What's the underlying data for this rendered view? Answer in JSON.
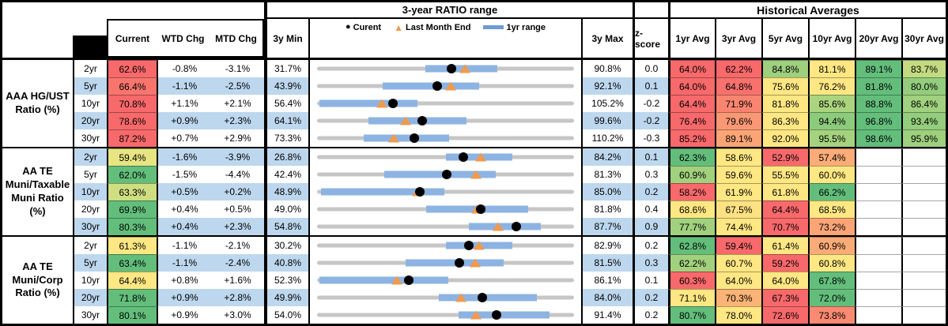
{
  "header": {
    "range_title": "3-year RATIO range",
    "hist_title": "Historical Averages",
    "col_current": "Current",
    "col_wtd": "WTD Chg",
    "col_mtd": "MTD Chg",
    "col_min": "3y Min",
    "col_max": "3y Max",
    "col_z": "z-score",
    "avg_cols": [
      "1yr Avg",
      "3yr Avg",
      "5yr Avg",
      "10yr Avg",
      "20yr Avg",
      "30yr Avg"
    ],
    "legend": {
      "current": "Curent",
      "last_month": "Last Month End",
      "range": "1yr range"
    }
  },
  "colors": {
    "stripe_blue": "#bdd7ee",
    "range_bar_blue": "#8db3e2",
    "track_gray": "#c6c6c6",
    "triangle_orange": "#f09a4d",
    "dot_black": "#000000",
    "heat_red": "#f8696b",
    "heat_yellow": "#ffe783",
    "heat_green": "#63be7b"
  },
  "chart_data": {
    "type": "table",
    "note": "Each row has a 3y Min..3y Max range chart: gray track = 3y range, blue bar = 1yr range (pct of track), black dot = Current, orange triangle = Last Month End",
    "groups": [
      {
        "label": "AAA HG/UST Ratio (%)",
        "rows": [
          {
            "tenor": "2yr",
            "striped": false,
            "current": "62.6%",
            "current_color": "#f8696b",
            "wtd": "-0.8%",
            "mtd": "-3.1%",
            "min": "31.7%",
            "max": "90.8%",
            "z": "0.0",
            "bar": [
              42,
              70
            ],
            "dot": 52.3,
            "tri": 57.5,
            "avgs": [
              {
                "v": "64.0%",
                "c": "#f8696b"
              },
              {
                "v": "62.2%",
                "c": "#f8696b"
              },
              {
                "v": "84.8%",
                "c": "#9ed07e"
              },
              {
                "v": "81.1%",
                "c": "#ffe783"
              },
              {
                "v": "89.1%",
                "c": "#63be7b"
              },
              {
                "v": "83.7%",
                "c": "#c3da80"
              }
            ]
          },
          {
            "tenor": "5yr",
            "striped": true,
            "current": "66.4%",
            "current_color": "#f8756e",
            "wtd": "-1.1%",
            "mtd": "-2.5%",
            "min": "43.9%",
            "max": "92.1%",
            "z": "0.1",
            "bar": [
              25.5,
              63
            ],
            "dot": 46.7,
            "tri": 51.9,
            "avgs": [
              {
                "v": "64.0%",
                "c": "#f8696b"
              },
              {
                "v": "64.8%",
                "c": "#f8716d"
              },
              {
                "v": "75.6%",
                "c": "#ffe783"
              },
              {
                "v": "76.2%",
                "c": "#ffe783"
              },
              {
                "v": "81.8%",
                "c": "#63be7b"
              },
              {
                "v": "80.0%",
                "c": "#93cd7d"
              }
            ]
          },
          {
            "tenor": "10yr",
            "striped": false,
            "current": "70.8%",
            "current_color": "#f8696b",
            "wtd": "+1.1%",
            "mtd": "+2.1%",
            "min": "56.4%",
            "max": "105.2%",
            "z": "-0.2",
            "bar": [
              1,
              39
            ],
            "dot": 29.5,
            "tri": 25.2,
            "avgs": [
              {
                "v": "64.4%",
                "c": "#f8696b"
              },
              {
                "v": "71.9%",
                "c": "#f98570"
              },
              {
                "v": "81.8%",
                "c": "#ffe783"
              },
              {
                "v": "85.6%",
                "c": "#abd47f"
              },
              {
                "v": "88.8%",
                "c": "#63be7b"
              },
              {
                "v": "86.4%",
                "c": "#a0d17e"
              }
            ]
          },
          {
            "tenor": "20yr",
            "striped": true,
            "current": "78.6%",
            "current_color": "#f8696b",
            "wtd": "+0.9%",
            "mtd": "+2.3%",
            "min": "64.1%",
            "max": "99.6%",
            "z": "-0.2",
            "bar": [
              20,
              58
            ],
            "dot": 40.8,
            "tri": 34.4,
            "avgs": [
              {
                "v": "76.4%",
                "c": "#f8696b"
              },
              {
                "v": "79.6%",
                "c": "#fa9875"
              },
              {
                "v": "86.3%",
                "c": "#ffe783"
              },
              {
                "v": "94.4%",
                "c": "#8ccb7c"
              },
              {
                "v": "96.8%",
                "c": "#63be7b"
              },
              {
                "v": "93.4%",
                "c": "#94cd7d"
              }
            ]
          },
          {
            "tenor": "30yr",
            "striped": false,
            "current": "87.2%",
            "current_color": "#f8696b",
            "wtd": "+0.7%",
            "mtd": "+2.9%",
            "min": "73.3%",
            "max": "110.2%",
            "z": "-0.3",
            "bar": [
              18,
              51.5
            ],
            "dot": 37.7,
            "tri": 29.8,
            "avgs": [
              {
                "v": "85.2%",
                "c": "#f8696b"
              },
              {
                "v": "89.1%",
                "c": "#fba577"
              },
              {
                "v": "92.0%",
                "c": "#ffe783"
              },
              {
                "v": "95.5%",
                "c": "#a5d27e"
              },
              {
                "v": "98.6%",
                "c": "#63be7b"
              },
              {
                "v": "95.9%",
                "c": "#9ed07e"
              }
            ]
          }
        ]
      },
      {
        "label": "AA TE Muni/Taxable Muni Ratio (%)",
        "rows": [
          {
            "tenor": "2yr",
            "striped": true,
            "current": "59.4%",
            "current_color": "#e7e482",
            "wtd": "-1.6%",
            "mtd": "-3.9%",
            "min": "26.8%",
            "max": "84.2%",
            "z": "0.1",
            "bar": [
              50,
              76
            ],
            "dot": 56.8,
            "tri": 63.6,
            "avgs": [
              {
                "v": "62.3%",
                "c": "#63be7b"
              },
              {
                "v": "58.6%",
                "c": "#ffe783"
              },
              {
                "v": "52.9%",
                "c": "#f8696b"
              },
              {
                "v": "57.4%",
                "c": "#fbac77"
              },
              null,
              null
            ]
          },
          {
            "tenor": "5yr",
            "striped": false,
            "current": "62.0%",
            "current_color": "#63be7b",
            "wtd": "-1.5%",
            "mtd": "-4.4%",
            "min": "42.4%",
            "max": "81.3%",
            "z": "0.3",
            "bar": [
              26,
              69.5
            ],
            "dot": 50.4,
            "tri": 61.7,
            "avgs": [
              {
                "v": "60.9%",
                "c": "#a2d17e"
              },
              {
                "v": "59.6%",
                "c": "#ffe783"
              },
              {
                "v": "55.5%",
                "c": "#ffe783"
              },
              {
                "v": "60.0%",
                "c": "#ffe783"
              },
              null,
              null
            ]
          },
          {
            "tenor": "10yr",
            "striped": true,
            "current": "63.3%",
            "current_color": "#cede81",
            "wtd": "+0.5%",
            "mtd": "+0.2%",
            "min": "48.9%",
            "max": "85.0%",
            "z": "0.2",
            "bar": [
              1.5,
              49.5
            ],
            "dot": 39.9,
            "tri": 39.0,
            "avgs": [
              {
                "v": "58.2%",
                "c": "#f8696b"
              },
              {
                "v": "61.9%",
                "c": "#ffe783"
              },
              {
                "v": "61.8%",
                "c": "#ffe783"
              },
              {
                "v": "66.2%",
                "c": "#63be7b"
              },
              null,
              null
            ]
          },
          {
            "tenor": "20yr",
            "striped": false,
            "current": "69.9%",
            "current_color": "#63be7b",
            "wtd": "+0.4%",
            "mtd": "+0.5%",
            "min": "49.0%",
            "max": "81.8%",
            "z": "0.4",
            "bar": [
              42.5,
              82
            ],
            "dot": 63.7,
            "tri": 62.0,
            "avgs": [
              {
                "v": "68.6%",
                "c": "#ffe783"
              },
              {
                "v": "67.5%",
                "c": "#fee182"
              },
              {
                "v": "64.4%",
                "c": "#f8696b"
              },
              {
                "v": "68.5%",
                "c": "#ffe783"
              },
              null,
              null
            ]
          },
          {
            "tenor": "30yr",
            "striped": true,
            "current": "80.3%",
            "current_color": "#63be7b",
            "wtd": "+0.4%",
            "mtd": "+2.3%",
            "min": "54.8%",
            "max": "87.7%",
            "z": "0.9",
            "bar": [
              59,
              87
            ],
            "dot": 77.5,
            "tri": 70.5,
            "avgs": [
              {
                "v": "77.7%",
                "c": "#a2d17e"
              },
              {
                "v": "74.4%",
                "c": "#ffe783"
              },
              {
                "v": "70.7%",
                "c": "#f8696b"
              },
              {
                "v": "73.2%",
                "c": "#fba577"
              },
              null,
              null
            ]
          }
        ]
      },
      {
        "label": "AA TE Muni/Corp Ratio (%)",
        "rows": [
          {
            "tenor": "2yr",
            "striped": false,
            "current": "61.3%",
            "current_color": "#ffe783",
            "wtd": "-1.1%",
            "mtd": "-2.1%",
            "min": "30.2%",
            "max": "82.9%",
            "z": "0.2",
            "bar": [
              50,
              76
            ],
            "dot": 59.0,
            "tri": 63.0,
            "avgs": [
              {
                "v": "62.8%",
                "c": "#63be7b"
              },
              {
                "v": "59.4%",
                "c": "#f8696b"
              },
              {
                "v": "61.4%",
                "c": "#ffe783"
              },
              {
                "v": "60.9%",
                "c": "#fbab77"
              },
              null,
              null
            ]
          },
          {
            "tenor": "5yr",
            "striped": true,
            "current": "63.4%",
            "current_color": "#63be7b",
            "wtd": "-1.1%",
            "mtd": "-2.4%",
            "min": "40.8%",
            "max": "81.5%",
            "z": "0.3",
            "bar": [
              34.5,
              72.5
            ],
            "dot": 55.5,
            "tri": 61.4,
            "avgs": [
              {
                "v": "62.2%",
                "c": "#a2d17e"
              },
              {
                "v": "60.7%",
                "c": "#ffe783"
              },
              {
                "v": "59.2%",
                "c": "#f8696b"
              },
              {
                "v": "60.8%",
                "c": "#ffe783"
              },
              null,
              null
            ]
          },
          {
            "tenor": "10yr",
            "striped": false,
            "current": "64.4%",
            "current_color": "#ffe783",
            "wtd": "+0.8%",
            "mtd": "+1.6%",
            "min": "52.3%",
            "max": "86.1%",
            "z": "0.1",
            "bar": [
              1,
              51
            ],
            "dot": 35.8,
            "tri": 31.1,
            "avgs": [
              {
                "v": "60.3%",
                "c": "#f8696b"
              },
              {
                "v": "64.0%",
                "c": "#ffe783"
              },
              {
                "v": "64.0%",
                "c": "#ffe783"
              },
              {
                "v": "67.8%",
                "c": "#63be7b"
              },
              null,
              null
            ]
          },
          {
            "tenor": "20yr",
            "striped": true,
            "current": "71.8%",
            "current_color": "#63be7b",
            "wtd": "+0.9%",
            "mtd": "+2.8%",
            "min": "49.9%",
            "max": "84.0%",
            "z": "0.2",
            "bar": [
              47.5,
              85.5
            ],
            "dot": 64.2,
            "tri": 56.0,
            "avgs": [
              {
                "v": "71.1%",
                "c": "#ffe783"
              },
              {
                "v": "70.3%",
                "c": "#fbb377"
              },
              {
                "v": "67.3%",
                "c": "#f8696b"
              },
              {
                "v": "72.0%",
                "c": "#63be7b"
              },
              null,
              null
            ]
          },
          {
            "tenor": "30yr",
            "striped": false,
            "current": "80.1%",
            "current_color": "#63be7b",
            "wtd": "+0.9%",
            "mtd": "+3.0%",
            "min": "54.0%",
            "max": "91.4%",
            "z": "0.2",
            "bar": [
              55,
              90.5
            ],
            "dot": 69.8,
            "tri": 61.8,
            "avgs": [
              {
                "v": "80.7%",
                "c": "#63be7b"
              },
              {
                "v": "78.0%",
                "c": "#ffe783"
              },
              {
                "v": "72.6%",
                "c": "#f8696b"
              },
              {
                "v": "73.8%",
                "c": "#fa8a71"
              },
              null,
              null
            ]
          }
        ]
      }
    ]
  }
}
